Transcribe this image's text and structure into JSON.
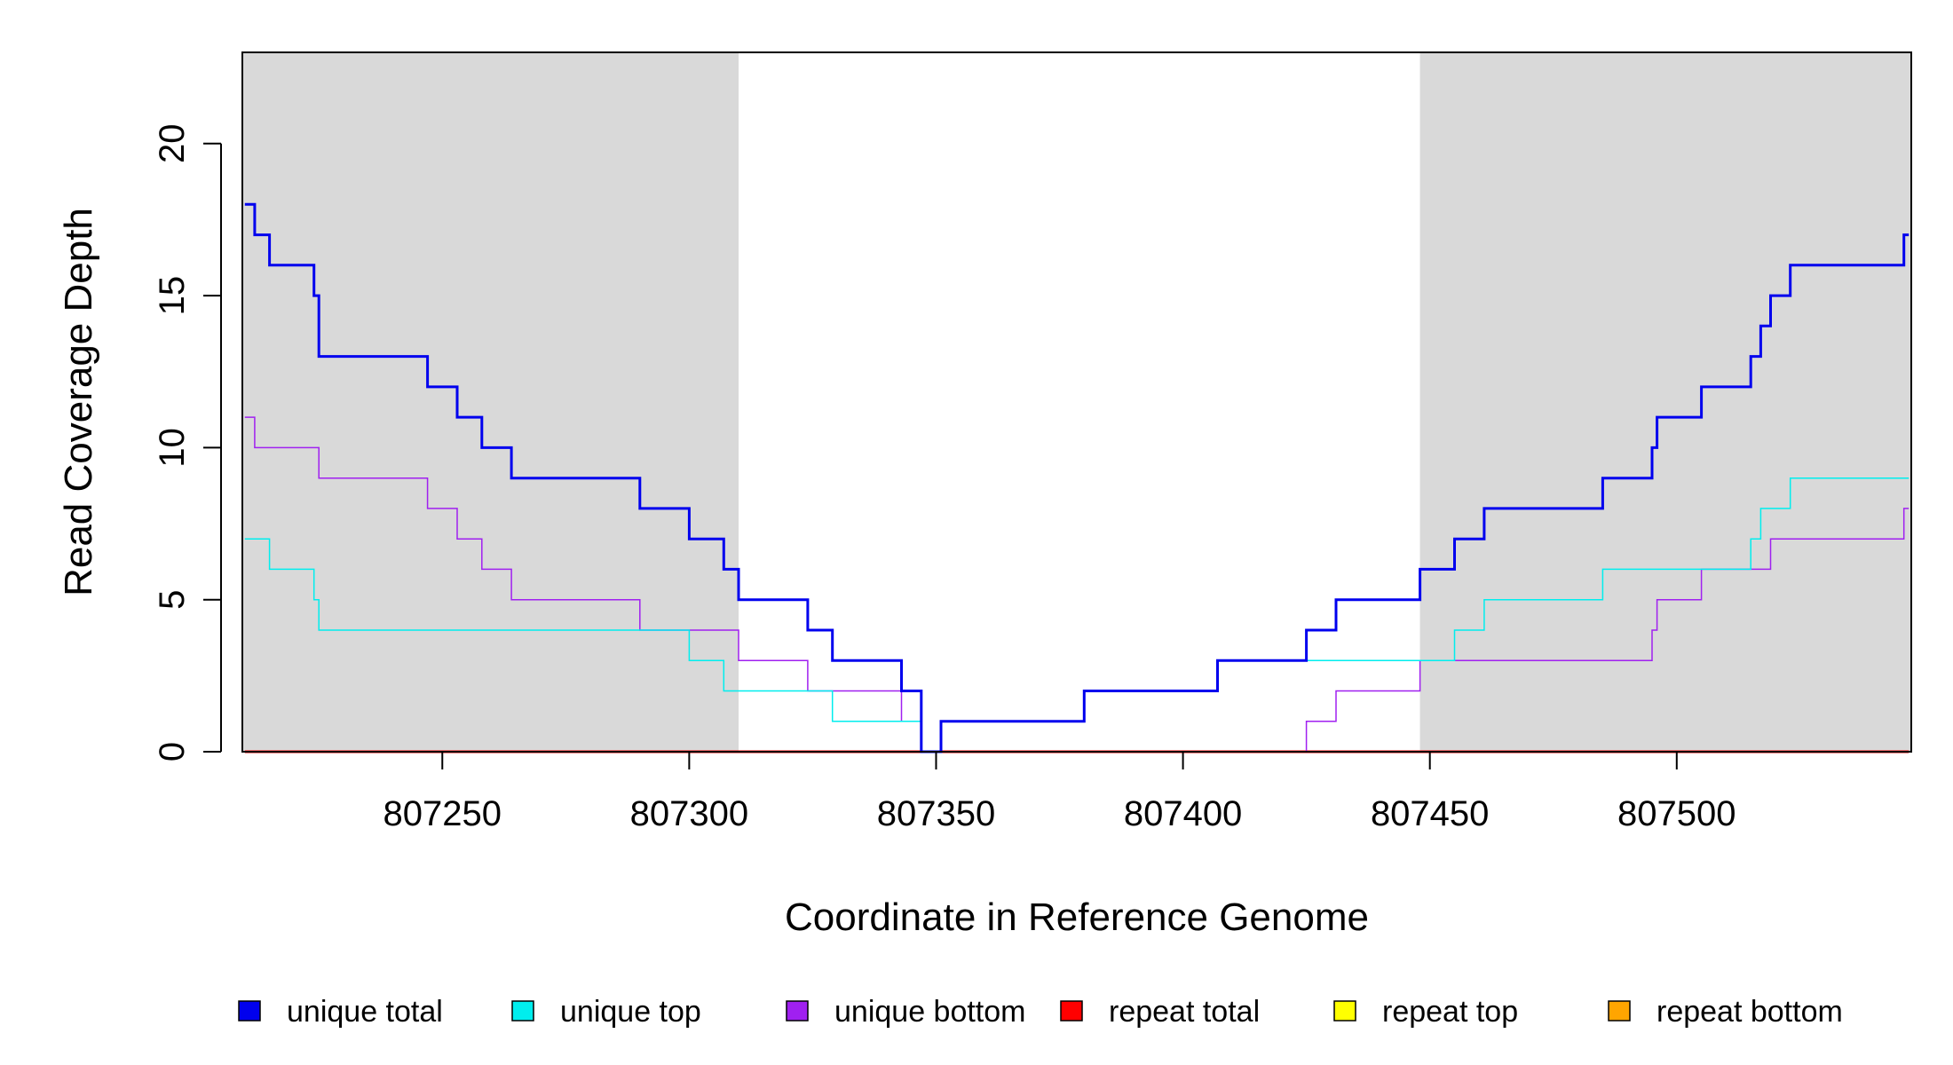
{
  "chart_data": {
    "type": "line",
    "step": true,
    "xlabel": "Coordinate in Reference Genome",
    "ylabel": "Read Coverage Depth",
    "xlim": [
      807209.5,
      807547.5
    ],
    "ylim": [
      0,
      23
    ],
    "x_ticks": [
      807250,
      807300,
      807350,
      807400,
      807450,
      807500
    ],
    "y_ticks": [
      0,
      5,
      10,
      15,
      20
    ],
    "shaded_regions": [
      {
        "from": 807209.5,
        "to": 807310,
        "color": "#d9d9d9"
      },
      {
        "from": 807448,
        "to": 807547.5,
        "color": "#d9d9d9"
      }
    ],
    "series": [
      {
        "name": "unique total",
        "color": "#0000ee",
        "width": 3,
        "points": [
          [
            807210,
            18
          ],
          [
            807212,
            17
          ],
          [
            807215,
            16
          ],
          [
            807224,
            15
          ],
          [
            807225,
            13
          ],
          [
            807247,
            12
          ],
          [
            807253,
            11
          ],
          [
            807258,
            10
          ],
          [
            807264,
            9
          ],
          [
            807290,
            8
          ],
          [
            807300,
            7
          ],
          [
            807307,
            6
          ],
          [
            807310,
            5
          ],
          [
            807324,
            4
          ],
          [
            807329,
            3
          ],
          [
            807343,
            2
          ],
          [
            807347,
            0
          ],
          [
            807351,
            1
          ],
          [
            807380,
            2
          ],
          [
            807407,
            3
          ],
          [
            807425,
            4
          ],
          [
            807431,
            5
          ],
          [
            807448,
            6
          ],
          [
            807455,
            7
          ],
          [
            807461,
            8
          ],
          [
            807485,
            9
          ],
          [
            807495,
            10
          ],
          [
            807496,
            11
          ],
          [
            807505,
            12
          ],
          [
            807515,
            13
          ],
          [
            807517,
            14
          ],
          [
            807519,
            15
          ],
          [
            807523,
            16
          ],
          [
            807546,
            17
          ],
          [
            807547,
            17
          ]
        ]
      },
      {
        "name": "unique top",
        "color": "#00eeee",
        "width": 1.5,
        "points": [
          [
            807210,
            7
          ],
          [
            807215,
            6
          ],
          [
            807224,
            5
          ],
          [
            807225,
            4
          ],
          [
            807300,
            3
          ],
          [
            807307,
            2
          ],
          [
            807329,
            1
          ],
          [
            807343,
            1
          ],
          [
            807347,
            0
          ],
          [
            807351,
            1
          ],
          [
            807380,
            2
          ],
          [
            807407,
            3
          ],
          [
            807448,
            3
          ],
          [
            807455,
            4
          ],
          [
            807461,
            5
          ],
          [
            807485,
            6
          ],
          [
            807505,
            6
          ],
          [
            807515,
            7
          ],
          [
            807517,
            8
          ],
          [
            807523,
            9
          ],
          [
            807547,
            9
          ]
        ]
      },
      {
        "name": "unique bottom",
        "color": "#a020f0",
        "width": 1.5,
        "points": [
          [
            807210,
            11
          ],
          [
            807212,
            10
          ],
          [
            807225,
            9
          ],
          [
            807247,
            8
          ],
          [
            807253,
            7
          ],
          [
            807258,
            6
          ],
          [
            807264,
            5
          ],
          [
            807290,
            4
          ],
          [
            807310,
            3
          ],
          [
            807324,
            2
          ],
          [
            807343,
            1
          ],
          [
            807347,
            0
          ],
          [
            807425,
            1
          ],
          [
            807431,
            2
          ],
          [
            807448,
            3
          ],
          [
            807495,
            4
          ],
          [
            807496,
            5
          ],
          [
            807505,
            6
          ],
          [
            807519,
            7
          ],
          [
            807546,
            8
          ],
          [
            807547,
            8
          ]
        ]
      },
      {
        "name": "repeat total",
        "color": "#ff0000",
        "width": 3,
        "points": [
          [
            807210,
            0
          ],
          [
            807547,
            0
          ]
        ]
      },
      {
        "name": "repeat top",
        "color": "#ffff00",
        "width": 2,
        "points": [
          [
            807210,
            0
          ],
          [
            807547,
            0
          ]
        ]
      },
      {
        "name": "repeat bottom",
        "color": "#ffa500",
        "width": 2,
        "points": [
          [
            807210,
            0
          ],
          [
            807547,
            0
          ]
        ]
      }
    ],
    "legend": {
      "position": "bottom",
      "items": [
        {
          "label": "unique total",
          "color": "#0000ee"
        },
        {
          "label": "unique top",
          "color": "#00eeee"
        },
        {
          "label": "unique bottom",
          "color": "#a020f0"
        },
        {
          "label": "repeat total",
          "color": "#ff0000"
        },
        {
          "label": "repeat top",
          "color": "#ffff00"
        },
        {
          "label": "repeat bottom",
          "color": "#ffa500"
        }
      ]
    }
  }
}
